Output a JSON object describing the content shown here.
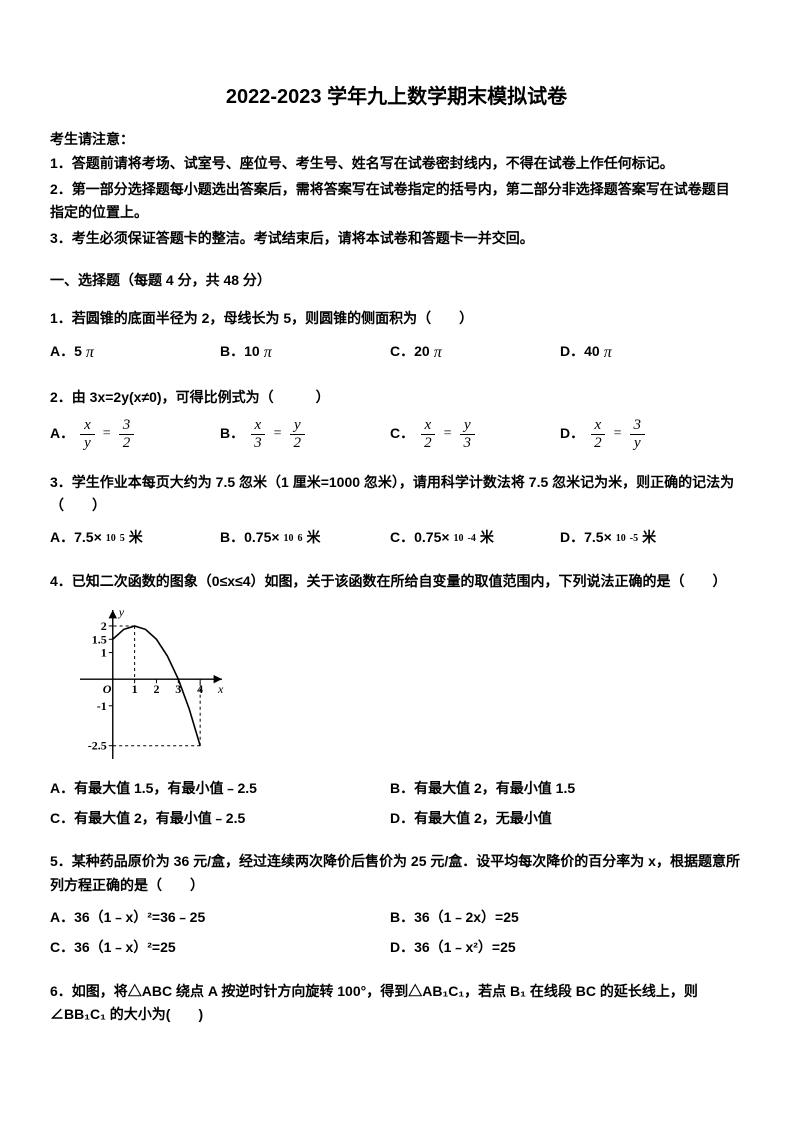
{
  "title": "2022-2023 学年九上数学期末模拟试卷",
  "notice_head": "考生请注意：",
  "notices": [
    "1．答题前请将考场、试室号、座位号、考生号、姓名写在试卷密封线内，不得在试卷上作任何标记。",
    "2．第一部分选择题每小题选出答案后，需将答案写在试卷指定的括号内，第二部分非选择题答案写在试卷题目指定的位置上。",
    "3．考生必须保证答题卡的整洁。考试结束后，请将本试卷和答题卡一并交回。"
  ],
  "section1_head": "一、选择题（每题 4 分，共 48 分）",
  "q1": {
    "stem": "1．若圆锥的底面半径为 2，母线长为 5，则圆锥的侧面积为（　　）",
    "A_pre": "A．5",
    "B_pre": "B．10",
    "C_pre": "C．20",
    "D_pre": "D．40",
    "pi": "π"
  },
  "q2": {
    "stem_pre": "2．由 3x=2y(x≠0)，可得比例式为（　　　）",
    "A": "A．",
    "B": "B．",
    "C": "C．",
    "D": "D．",
    "fracs": {
      "A": {
        "n1": "x",
        "d1": "y",
        "n2": "3",
        "d2": "2"
      },
      "B": {
        "n1": "x",
        "d1": "3",
        "n2": "y",
        "d2": "2"
      },
      "C": {
        "n1": "x",
        "d1": "2",
        "n2": "y",
        "d2": "3"
      },
      "D": {
        "n1": "x",
        "d1": "2",
        "n2": "3",
        "d2": "y"
      }
    },
    "eq": "="
  },
  "q3": {
    "stem": "3．学生作业本每页大约为 7.5 忽米（1 厘米=1000 忽米），请用科学计数法将 7.5 忽米记为米，则正确的记法为（　　）",
    "A": "A．7.5×",
    "A_base": "10",
    "A_exp": "5",
    "A_suf": "米",
    "B": "B．0.75×",
    "B_base": "10",
    "B_exp": "6",
    "B_suf": "米",
    "C": "C．0.75×",
    "C_base": "10",
    "C_exp": "-4",
    "C_suf": "米",
    "D": "D．7.5×",
    "D_base": "10",
    "D_exp": "-5",
    "D_suf": "米"
  },
  "q4": {
    "stem": "4．已知二次函数的图象（0≤x≤4）如图，关于该函数在所给自变量的取值范围内，下列说法正确的是（　　）",
    "optA": "A．有最大值 1.5，有最小值﹣2.5",
    "optB": "B．有最大值 2，有最小值 1.5",
    "optC": "C．有最大值 2，有最小值﹣2.5",
    "optD": "D．有最大值 2，无最小值",
    "chart": {
      "type": "line",
      "xlim": [
        -1.5,
        5
      ],
      "ylim": [
        -3,
        2.6
      ],
      "xticks": [
        1,
        2,
        3,
        4
      ],
      "yticks": [
        -2.5,
        -1,
        1,
        1.5,
        2
      ],
      "xtick_labels": [
        "1",
        "2",
        "3",
        "4"
      ],
      "ytick_labels": [
        "-2.5",
        "-1",
        "1",
        "1.5",
        "2"
      ],
      "curve_xrange": [
        0,
        4
      ],
      "curve_points": [
        [
          0,
          1.5
        ],
        [
          0.5,
          1.87
        ],
        [
          1,
          2.0
        ],
        [
          1.5,
          1.87
        ],
        [
          2,
          1.5
        ],
        [
          2.5,
          0.87
        ],
        [
          3,
          0
        ],
        [
          3.5,
          -1.12
        ],
        [
          4,
          -2.5
        ]
      ],
      "dash_lines": [
        {
          "from": [
            0,
            1.5
          ],
          "to": [
            -0.05,
            1.5
          ]
        },
        {
          "from": [
            1,
            2
          ],
          "to": [
            1,
            0
          ]
        },
        {
          "from": [
            1,
            2
          ],
          "to": [
            0,
            2
          ]
        },
        {
          "from": [
            4,
            -2.5
          ],
          "to": [
            4,
            0
          ]
        },
        {
          "from": [
            4,
            -2.5
          ],
          "to": [
            0,
            -2.5
          ]
        }
      ],
      "axis_labels": {
        "x": "x",
        "y": "y",
        "origin": "O"
      },
      "colors": {
        "axis": "#000000",
        "curve": "#000000",
        "text": "#000000",
        "bg": "#ffffff",
        "dash": "#000000"
      },
      "line_width": 1.6,
      "axis_width": 1.4,
      "font_size": 12
    }
  },
  "q5": {
    "stem": "5．某种药品原价为 36 元/盒，经过连续两次降价后售价为 25 元/盒．设平均每次降价的百分率为 x，根据题意所列方程正确的是（　　）",
    "optA": "A．36（1﹣x）²=36﹣25",
    "optB": "B．36（1﹣2x）=25",
    "optC": "C．36（1﹣x）²=25",
    "optD": "D．36（1﹣x²）=25"
  },
  "q6": {
    "stem": "6．如图，将△ABC 绕点 A 按逆时针方向旋转 100°，得到△AB₁C₁，若点 B₁ 在线段 BC 的延长线上，则∠BB₁C₁ 的大小为(　　)"
  }
}
